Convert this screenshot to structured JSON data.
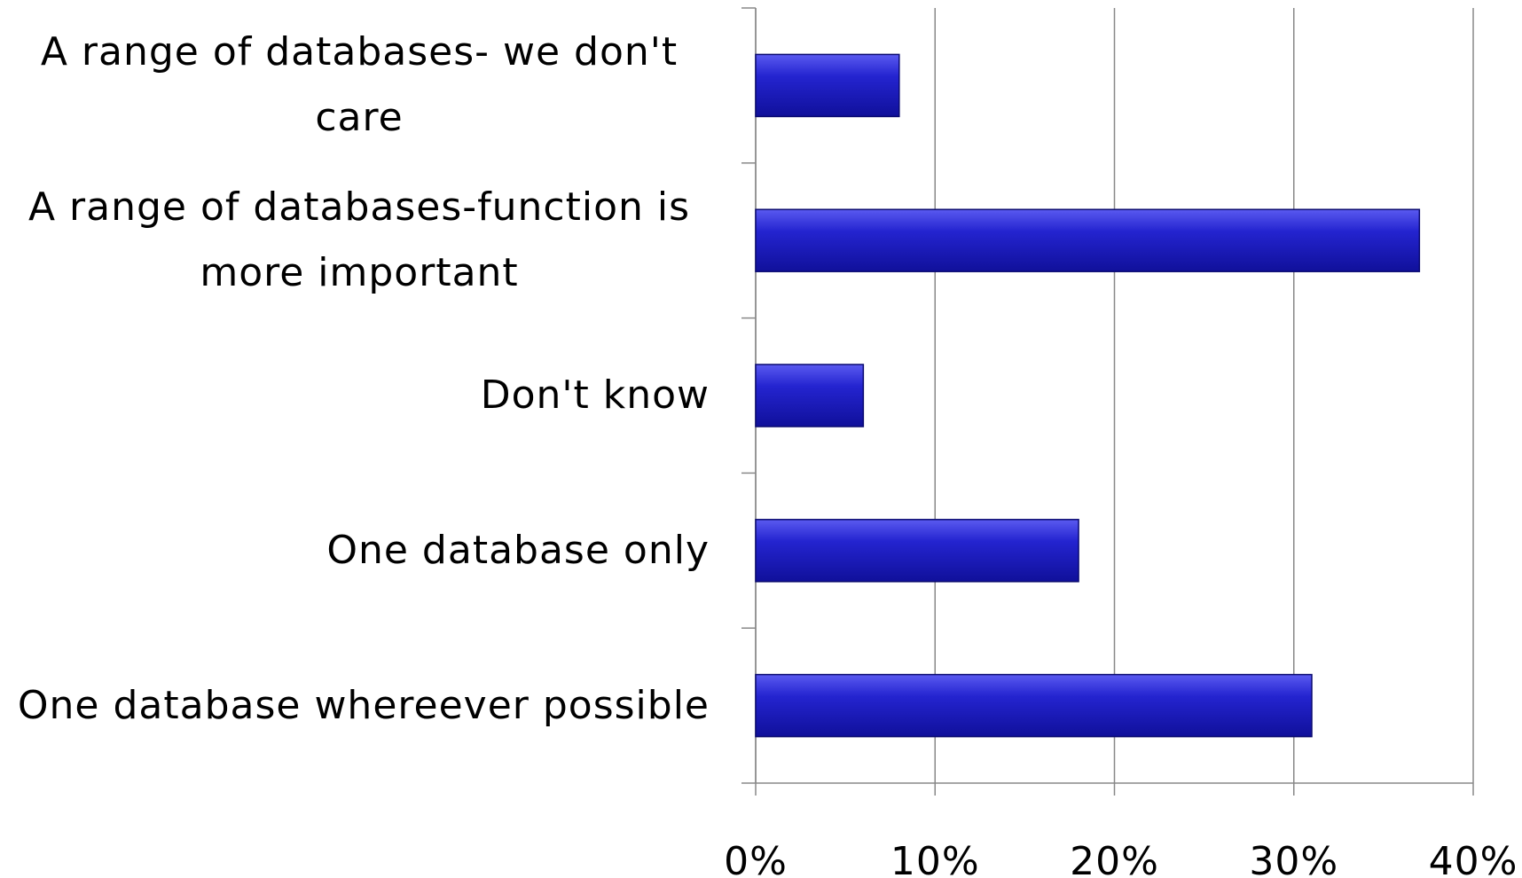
{
  "chart_data": {
    "type": "bar",
    "orientation": "horizontal",
    "categories": [
      "A range of databases- we don't care",
      "A range of databases-function is more important",
      "Don't know",
      "One database only",
      "One database whereever possible"
    ],
    "values": [
      8,
      37,
      6,
      18,
      31
    ],
    "color": "#1a1ab8",
    "xlim": [
      0,
      40
    ],
    "xticks": [
      {
        "value": 0,
        "label": "0%"
      },
      {
        "value": 10,
        "label": "10%"
      },
      {
        "value": 20,
        "label": "20%"
      },
      {
        "value": 30,
        "label": "30%"
      },
      {
        "value": 40,
        "label": "40%"
      }
    ],
    "grid": true
  }
}
